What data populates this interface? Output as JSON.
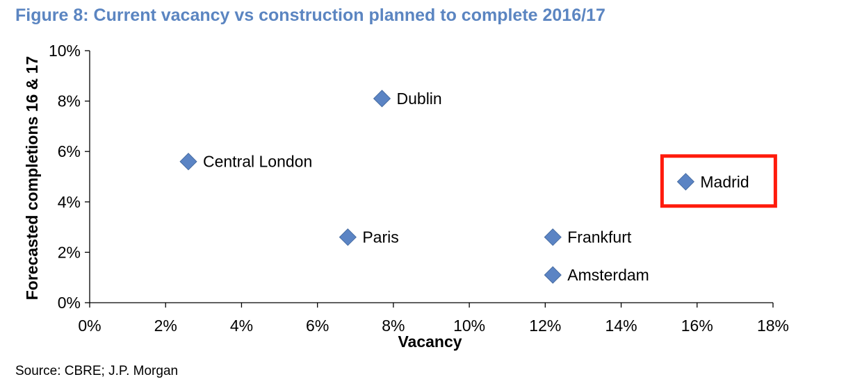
{
  "figure": {
    "title": "Figure 8: Current vacancy vs construction planned to complete 2016/17",
    "source": "Source: CBRE; J.P. Morgan"
  },
  "colors": {
    "title": "#5B85C1",
    "marker": "#5B84C4",
    "marker_edge": "#3D6399",
    "highlight_box": "#FF1B0C",
    "axis": "#000000"
  },
  "chart_data": {
    "type": "scatter",
    "title": "Figure 8: Current vacancy vs construction planned to complete 2016/17",
    "xlabel": "Vacancy",
    "ylabel": "Forecasted completions 16 & 17",
    "xlim": [
      0,
      18
    ],
    "ylim": [
      0,
      10
    ],
    "x_ticks": [
      "0%",
      "2%",
      "4%",
      "6%",
      "8%",
      "10%",
      "12%",
      "14%",
      "16%",
      "18%"
    ],
    "y_ticks": [
      "0%",
      "2%",
      "4%",
      "6%",
      "8%",
      "10%"
    ],
    "x_tick_values": [
      0,
      2,
      4,
      6,
      8,
      10,
      12,
      14,
      16,
      18
    ],
    "y_tick_values": [
      0,
      2,
      4,
      6,
      8,
      10
    ],
    "grid": false,
    "legend": "none",
    "marker": "diamond",
    "points": [
      {
        "label": "Central London",
        "x": 2.6,
        "y": 5.6
      },
      {
        "label": "Dublin",
        "x": 7.7,
        "y": 8.1
      },
      {
        "label": "Paris",
        "x": 6.8,
        "y": 2.6
      },
      {
        "label": "Frankfurt",
        "x": 12.2,
        "y": 2.6
      },
      {
        "label": "Amsterdam",
        "x": 12.2,
        "y": 1.1
      },
      {
        "label": "Madrid",
        "x": 15.7,
        "y": 4.8,
        "highlighted": true
      }
    ]
  }
}
